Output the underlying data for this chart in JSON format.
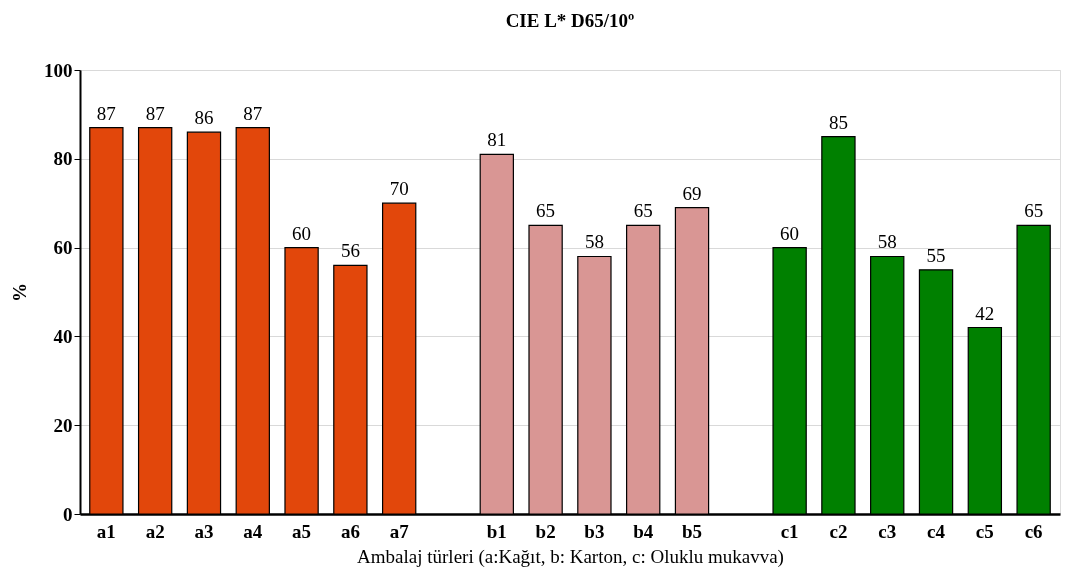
{
  "chart_data": {
    "type": "bar",
    "title": "CIE L* D65/10º",
    "xlabel": "Ambalaj türleri (a:Kağıt, b: Karton, c: Oluklu mukavva)",
    "ylabel": "%",
    "categories": [
      "a1",
      "a2",
      "a3",
      "a4",
      "a5",
      "a6",
      "a7",
      null,
      "b1",
      "b2",
      "b3",
      "b4",
      "b5",
      null,
      "c1",
      "c2",
      "c3",
      "c4",
      "c5",
      "c6"
    ],
    "values": [
      87,
      87,
      86,
      87,
      60,
      56,
      70,
      null,
      81,
      65,
      58,
      65,
      69,
      null,
      60,
      85,
      58,
      55,
      42,
      65
    ],
    "colors": [
      "#e2470b",
      "#e2470b",
      "#e2470b",
      "#e2470b",
      "#e2470b",
      "#e2470b",
      "#e2470b",
      null,
      "#d99694",
      "#d99694",
      "#d99694",
      "#d99694",
      "#d99694",
      null,
      "#008000",
      "#008000",
      "#008000",
      "#008000",
      "#008000",
      "#008000"
    ],
    "ylim": [
      0,
      100
    ],
    "yticks": [
      0,
      20,
      40,
      60,
      80,
      100
    ],
    "grid": "y",
    "data_labels": true
  }
}
